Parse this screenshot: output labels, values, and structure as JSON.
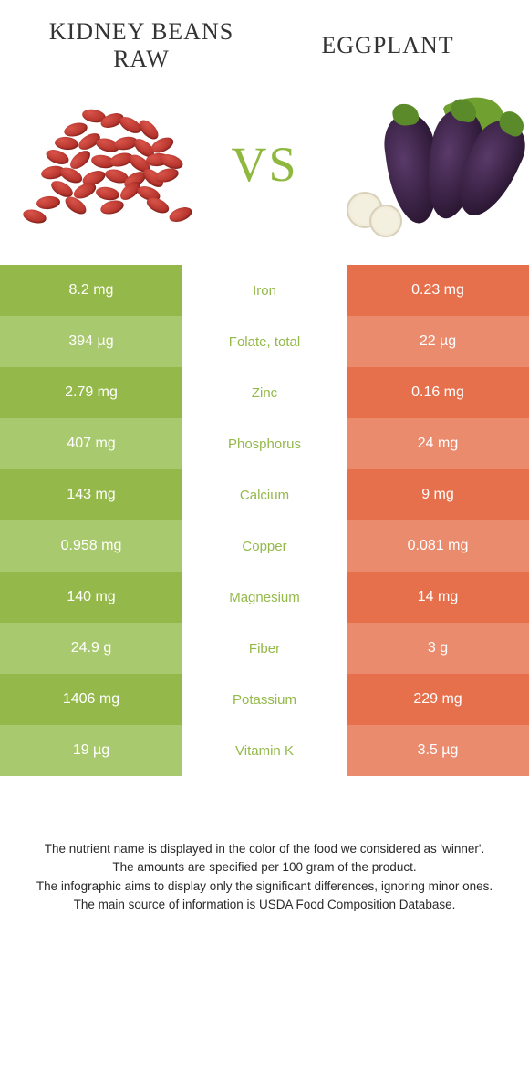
{
  "header": {
    "left_title": "Kidney beans raw",
    "right_title": "Eggplant",
    "vs": "VS"
  },
  "colors": {
    "left_food": "#94b94a",
    "left_food_alt": "#a9c96e",
    "right_food": "#e66f4c",
    "right_food_alt": "#ea8b6e",
    "vs_color": "#8fb83f"
  },
  "rows": [
    {
      "left": "8.2 mg",
      "nutrient": "Iron",
      "right": "0.23 mg",
      "winner": "left"
    },
    {
      "left": "394 µg",
      "nutrient": "Folate, total",
      "right": "22 µg",
      "winner": "left"
    },
    {
      "left": "2.79 mg",
      "nutrient": "Zinc",
      "right": "0.16 mg",
      "winner": "left"
    },
    {
      "left": "407 mg",
      "nutrient": "Phosphorus",
      "right": "24 mg",
      "winner": "left"
    },
    {
      "left": "143 mg",
      "nutrient": "Calcium",
      "right": "9 mg",
      "winner": "left"
    },
    {
      "left": "0.958 mg",
      "nutrient": "Copper",
      "right": "0.081 mg",
      "winner": "left"
    },
    {
      "left": "140 mg",
      "nutrient": "Magnesium",
      "right": "14 mg",
      "winner": "left"
    },
    {
      "left": "24.9 g",
      "nutrient": "Fiber",
      "right": "3 g",
      "winner": "left"
    },
    {
      "left": "1406 mg",
      "nutrient": "Potassium",
      "right": "229 mg",
      "winner": "left"
    },
    {
      "left": "19 µg",
      "nutrient": "Vitamin K",
      "right": "3.5 µg",
      "winner": "left"
    }
  ],
  "footer": {
    "line1": "The nutrient name is displayed in the color of the food we considered as 'winner'.",
    "line2": "The amounts are specified per 100 gram of the product.",
    "line3": "The infographic aims to display only the significant differences, ignoring minor ones.",
    "line4": "The main source of information is USDA Food Composition Database."
  }
}
